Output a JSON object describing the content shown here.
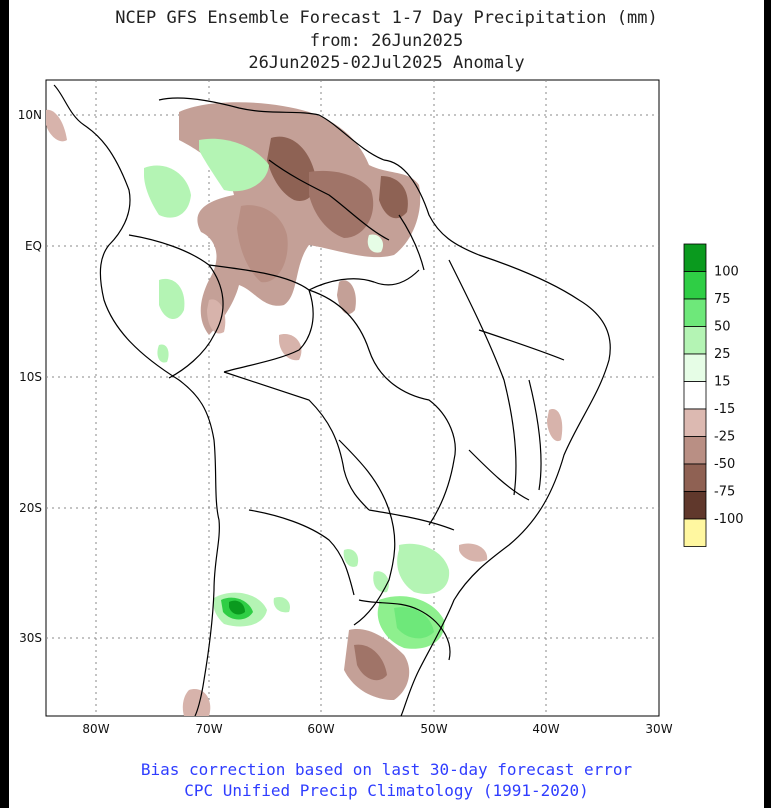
{
  "titles": {
    "line1": "NCEP GFS Ensemble Forecast 1-7 Day Precipitation (mm)",
    "line2": "from: 26Jun2025",
    "line3": "26Jun2025-02Jul2025 Anomaly"
  },
  "footer": {
    "line1": "Bias correction based on last 30-day forecast error",
    "line2": "CPC Unified Precip Climatology (1991-2020)"
  },
  "axes": {
    "lat_labels": [
      "10N",
      "EQ",
      "10S",
      "20S",
      "30S"
    ],
    "lon_labels": [
      "80W",
      "70W",
      "60W",
      "50W",
      "40W",
      "30W"
    ]
  },
  "legend": {
    "items": [
      {
        "label": "100",
        "color": "#0a9a1e"
      },
      {
        "label": "75",
        "color": "#2fce45"
      },
      {
        "label": "50",
        "color": "#6ee87a"
      },
      {
        "label": "25",
        "color": "#b4f4b4"
      },
      {
        "label": "15",
        "color": "#e6fde6"
      },
      {
        "label": "-15",
        "color": "#ffffff"
      },
      {
        "label": "-25",
        "color": "#dcb9b1"
      },
      {
        "label": "-50",
        "color": "#b98f84"
      },
      {
        "label": "-75",
        "color": "#8f6153"
      },
      {
        "label": "-100",
        "color": "#60382c"
      },
      {
        "label": "",
        "color": "#fff7a0"
      }
    ]
  }
}
